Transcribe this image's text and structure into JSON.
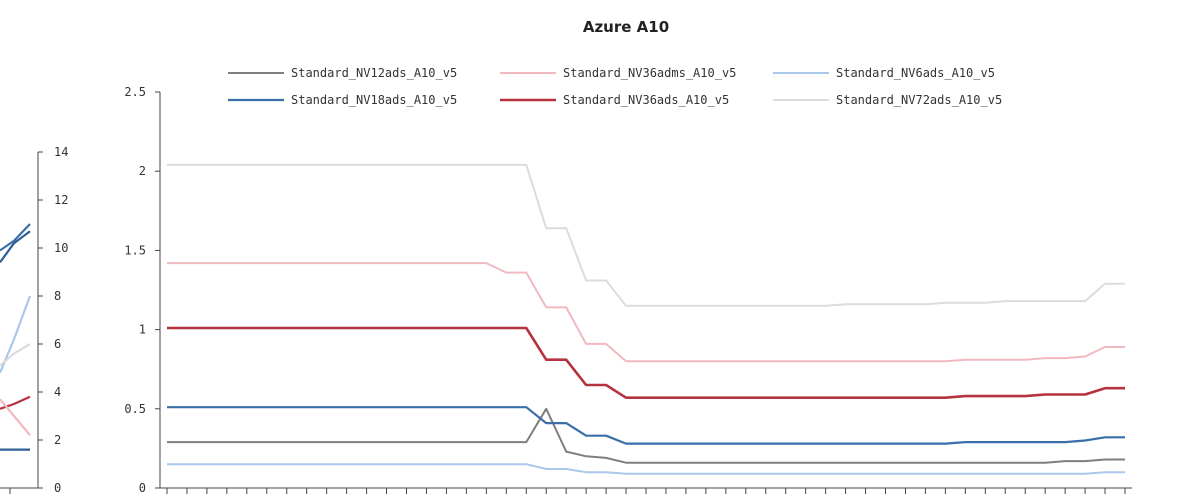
{
  "chart_data": [
    {
      "type": "line",
      "title": "Azure A10",
      "ylim": [
        0,
        2.5
      ],
      "y_ticks": [
        "0",
        "0.5",
        "1",
        "1.5",
        "2",
        "2.5"
      ],
      "grid": false,
      "legend_position": "top",
      "x": [
        1,
        2,
        3,
        4,
        5,
        6,
        7,
        8,
        9,
        10,
        11,
        12,
        13,
        14,
        15,
        16,
        17,
        18,
        19,
        20,
        21,
        22,
        23,
        24,
        25,
        26,
        27,
        28,
        29,
        30,
        31,
        32,
        33,
        34,
        35,
        36,
        37,
        38,
        39,
        40,
        41,
        42,
        43,
        44,
        45,
        46,
        47,
        48,
        49
      ],
      "series": [
        {
          "name": "Standard_NV12ads_A10_v5",
          "color": "#7f7f7f",
          "width": 2,
          "values": [
            0.29,
            0.29,
            0.29,
            0.29,
            0.29,
            0.29,
            0.29,
            0.29,
            0.29,
            0.29,
            0.29,
            0.29,
            0.29,
            0.29,
            0.29,
            0.29,
            0.29,
            0.29,
            0.29,
            0.5,
            0.23,
            0.2,
            0.19,
            0.16,
            0.16,
            0.16,
            0.16,
            0.16,
            0.16,
            0.16,
            0.16,
            0.16,
            0.16,
            0.16,
            0.16,
            0.16,
            0.16,
            0.16,
            0.16,
            0.16,
            0.16,
            0.16,
            0.16,
            0.16,
            0.16,
            0.17,
            0.17,
            0.18,
            0.18
          ]
        },
        {
          "name": "Standard_NV18ads_A10_v5",
          "color": "#3a6fa8",
          "width": 2.2,
          "values": [
            0.51,
            0.51,
            0.51,
            0.51,
            0.51,
            0.51,
            0.51,
            0.51,
            0.51,
            0.51,
            0.51,
            0.51,
            0.51,
            0.51,
            0.51,
            0.51,
            0.51,
            0.51,
            0.51,
            0.41,
            0.41,
            0.33,
            0.33,
            0.28,
            0.28,
            0.28,
            0.28,
            0.28,
            0.28,
            0.28,
            0.28,
            0.28,
            0.28,
            0.28,
            0.28,
            0.28,
            0.28,
            0.28,
            0.28,
            0.28,
            0.29,
            0.29,
            0.29,
            0.29,
            0.29,
            0.29,
            0.3,
            0.32,
            0.32
          ]
        },
        {
          "name": "Standard_NV36adms_A10_v5",
          "color": "#f0b9bf",
          "width": 2,
          "values": [
            1.42,
            1.42,
            1.42,
            1.42,
            1.42,
            1.42,
            1.42,
            1.42,
            1.42,
            1.42,
            1.42,
            1.42,
            1.42,
            1.42,
            1.42,
            1.42,
            1.42,
            1.36,
            1.36,
            1.14,
            1.14,
            0.91,
            0.91,
            0.8,
            0.8,
            0.8,
            0.8,
            0.8,
            0.8,
            0.8,
            0.8,
            0.8,
            0.8,
            0.8,
            0.8,
            0.8,
            0.8,
            0.8,
            0.8,
            0.8,
            0.81,
            0.81,
            0.81,
            0.81,
            0.82,
            0.82,
            0.83,
            0.89,
            0.89
          ]
        },
        {
          "name": "Standard_NV36ads_A10_v5",
          "color": "#b5333f",
          "width": 2.6,
          "values": [
            1.01,
            1.01,
            1.01,
            1.01,
            1.01,
            1.01,
            1.01,
            1.01,
            1.01,
            1.01,
            1.01,
            1.01,
            1.01,
            1.01,
            1.01,
            1.01,
            1.01,
            1.01,
            1.01,
            0.81,
            0.81,
            0.65,
            0.65,
            0.57,
            0.57,
            0.57,
            0.57,
            0.57,
            0.57,
            0.57,
            0.57,
            0.57,
            0.57,
            0.57,
            0.57,
            0.57,
            0.57,
            0.57,
            0.57,
            0.57,
            0.58,
            0.58,
            0.58,
            0.58,
            0.59,
            0.59,
            0.59,
            0.63,
            0.63
          ]
        },
        {
          "name": "Standard_NV6ads_A10_v5",
          "color": "#a9c8ea",
          "width": 2,
          "values": [
            0.15,
            0.15,
            0.15,
            0.15,
            0.15,
            0.15,
            0.15,
            0.15,
            0.15,
            0.15,
            0.15,
            0.15,
            0.15,
            0.15,
            0.15,
            0.15,
            0.15,
            0.15,
            0.15,
            0.12,
            0.12,
            0.1,
            0.1,
            0.09,
            0.09,
            0.09,
            0.09,
            0.09,
            0.09,
            0.09,
            0.09,
            0.09,
            0.09,
            0.09,
            0.09,
            0.09,
            0.09,
            0.09,
            0.09,
            0.09,
            0.09,
            0.09,
            0.09,
            0.09,
            0.09,
            0.09,
            0.09,
            0.1,
            0.1
          ]
        },
        {
          "name": "Standard_NV72ads_A10_v5",
          "color": "#dcdcdc",
          "width": 2,
          "values": [
            2.04,
            2.04,
            2.04,
            2.04,
            2.04,
            2.04,
            2.04,
            2.04,
            2.04,
            2.04,
            2.04,
            2.04,
            2.04,
            2.04,
            2.04,
            2.04,
            2.04,
            2.04,
            2.04,
            1.64,
            1.64,
            1.31,
            1.31,
            1.15,
            1.15,
            1.15,
            1.15,
            1.15,
            1.15,
            1.15,
            1.15,
            1.15,
            1.15,
            1.15,
            1.16,
            1.16,
            1.16,
            1.16,
            1.16,
            1.17,
            1.17,
            1.17,
            1.18,
            1.18,
            1.18,
            1.18,
            1.18,
            1.29,
            1.29
          ]
        }
      ]
    },
    {
      "type": "line",
      "title": "",
      "ylim": [
        0,
        14
      ],
      "y_ticks": [
        "0",
        "2",
        "4",
        "6",
        "8",
        "10",
        "12",
        "14"
      ],
      "y_axis_side": "right",
      "grid": false,
      "x": [
        1,
        2,
        3
      ],
      "series": [
        {
          "color": "#2f5f96",
          "values": [
            9.4,
            10.2,
            10.7
          ]
        },
        {
          "color": "#3a6fa8",
          "values": [
            9.9,
            10.3,
            11
          ]
        },
        {
          "color": "#a9c8ea",
          "values": [
            4.8,
            6.2,
            8
          ]
        },
        {
          "color": "#dcdcdc",
          "values": [
            5.1,
            5.6,
            6
          ]
        },
        {
          "color": "#b5333f",
          "values": [
            3.3,
            3.5,
            3.8
          ]
        },
        {
          "color": "#f0b9bf",
          "values": [
            3.7,
            3,
            2.2
          ]
        },
        {
          "color": "#2f5f96",
          "values": [
            1.6,
            1.6,
            1.6
          ]
        }
      ]
    }
  ]
}
